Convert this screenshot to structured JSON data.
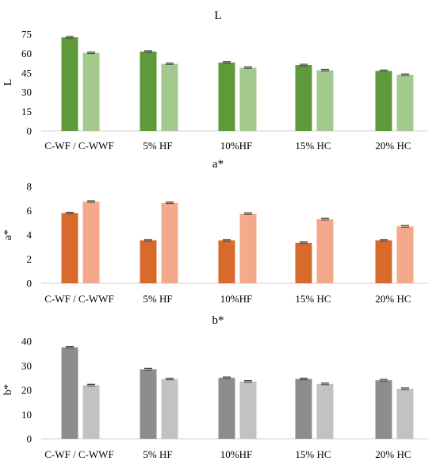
{
  "chart_data": [
    {
      "type": "bar",
      "title": "L",
      "ylabel": "L",
      "xlabel": "",
      "ylim": [
        0,
        75
      ],
      "yticks": [
        0,
        15,
        30,
        45,
        60,
        75
      ],
      "grid": false,
      "legend": "none",
      "categories": [
        "C-WF / C-WWF",
        "5% HF",
        "10%HF",
        "15% HC",
        "20% HC"
      ],
      "colors": [
        "#5e9a3a",
        "#a3c98d"
      ],
      "series": [
        {
          "values": [
            72.5,
            61.5,
            53.0,
            51.0,
            46.5
          ]
        },
        {
          "values": [
            60.5,
            52.0,
            49.0,
            47.0,
            43.5
          ]
        }
      ]
    },
    {
      "type": "bar",
      "title": "a*",
      "ylabel": "a*",
      "xlabel": "",
      "ylim": [
        0,
        8
      ],
      "yticks": [
        0,
        2,
        4,
        6,
        8
      ],
      "grid": false,
      "legend": "none",
      "categories": [
        "C-WF / C-WWF",
        "5% HF",
        "10%HF",
        "15% HC",
        "20% HC"
      ],
      "colors": [
        "#d86b2b",
        "#f3a98a"
      ],
      "series": [
        {
          "values": [
            5.8,
            3.55,
            3.55,
            3.35,
            3.55
          ]
        },
        {
          "values": [
            6.75,
            6.65,
            5.75,
            5.3,
            4.7
          ]
        }
      ]
    },
    {
      "type": "bar",
      "title": "b*",
      "ylabel": "b*",
      "xlabel": "",
      "ylim": [
        0,
        40
      ],
      "yticks": [
        0,
        10,
        20,
        30,
        40
      ],
      "grid": false,
      "legend": "none",
      "categories": [
        "C-WF / C-WWF",
        "5% HF",
        "10%HF",
        "15% HC",
        "20% HC"
      ],
      "colors": [
        "#8d8d8d",
        "#c2c2c2"
      ],
      "series": [
        {
          "values": [
            37.5,
            28.5,
            25.0,
            24.5,
            24.0
          ]
        },
        {
          "values": [
            22.0,
            24.5,
            23.5,
            22.5,
            20.5
          ]
        }
      ]
    }
  ]
}
